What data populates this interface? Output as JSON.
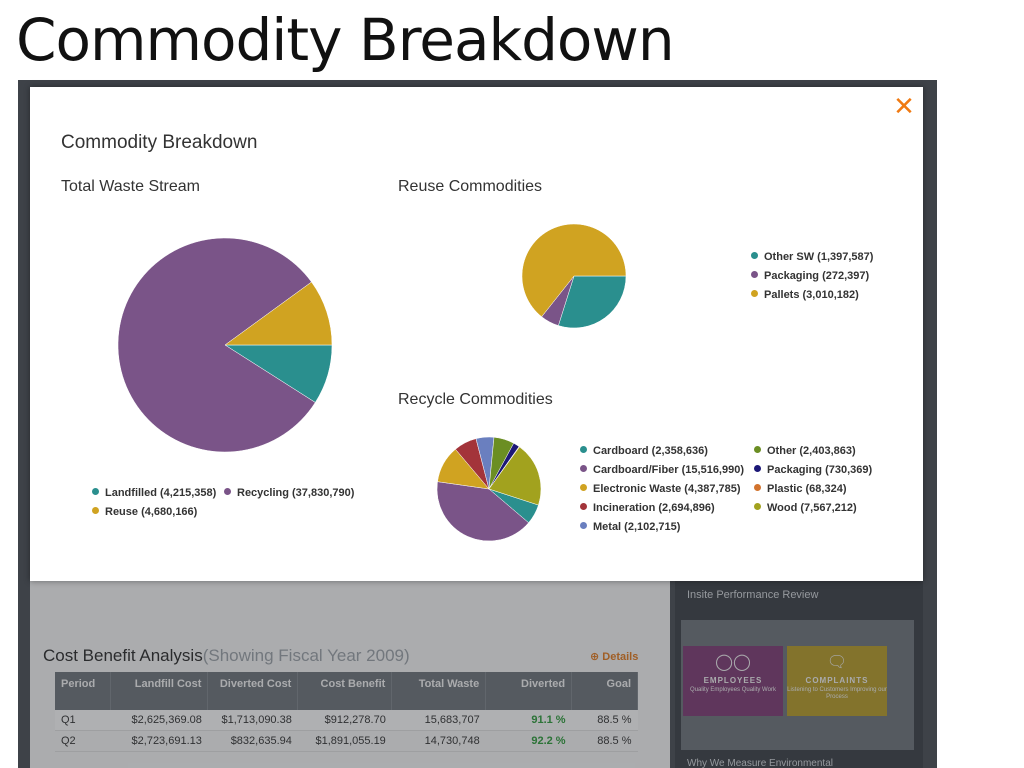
{
  "slide": {
    "title": "Commodity Breakdown"
  },
  "modal": {
    "title": "Commodity Breakdown",
    "close_icon": "close-x-icon",
    "close_glyph": "✕",
    "accent_color": "#f07a12"
  },
  "chart_data": [
    {
      "type": "pie",
      "title": "Total Waste Stream",
      "series": [
        {
          "name": "Landfilled",
          "value": 4215358,
          "label": "Landfilled (4,215,358)",
          "color": "#2a8f8e"
        },
        {
          "name": "Recycling",
          "value": 37830790,
          "label": "Recycling (37,830,790)",
          "color": "#7a5488"
        },
        {
          "name": "Reuse",
          "value": 4680166,
          "label": "Reuse (4,680,166)",
          "color": "#d0a321"
        }
      ],
      "legend": "bottom"
    },
    {
      "type": "pie",
      "title": "Reuse Commodities",
      "series": [
        {
          "name": "Other SW",
          "value": 1397587,
          "label": "Other SW (1,397,587)",
          "color": "#2a8f8e"
        },
        {
          "name": "Packaging",
          "value": 272397,
          "label": "Packaging (272,397)",
          "color": "#7a5488"
        },
        {
          "name": "Pallets",
          "value": 3010182,
          "label": "Pallets (3,010,182)",
          "color": "#d0a321"
        }
      ],
      "legend": "right"
    },
    {
      "type": "pie",
      "title": "Recycle Commodities",
      "series": [
        {
          "name": "Cardboard",
          "value": 2358636,
          "label": "Cardboard (2,358,636)",
          "color": "#2a8f8e"
        },
        {
          "name": "Cardboard/Fiber",
          "value": 15516990,
          "label": "Cardboard/Fiber (15,516,990)",
          "color": "#7a5488"
        },
        {
          "name": "Electronic Waste",
          "value": 4387785,
          "label": "Electronic Waste (4,387,785)",
          "color": "#d0a321"
        },
        {
          "name": "Incineration",
          "value": 2694896,
          "label": "Incineration (2,694,896)",
          "color": "#a3343a"
        },
        {
          "name": "Metal",
          "value": 2102715,
          "label": "Metal (2,102,715)",
          "color": "#6a7fbf"
        },
        {
          "name": "Other",
          "value": 2403863,
          "label": "Other (2,403,863)",
          "color": "#6b8e23"
        },
        {
          "name": "Packaging",
          "value": 730369,
          "label": "Packaging (730,369)",
          "color": "#1c1877"
        },
        {
          "name": "Plastic",
          "value": 68324,
          "label": "Plastic (68,324)",
          "color": "#d2732d"
        },
        {
          "name": "Wood",
          "value": 7567212,
          "label": "Wood (7,567,212)",
          "color": "#a2a21e"
        }
      ],
      "legend": "right"
    }
  ],
  "background": {
    "cost_title": "Cost Benefit Analysis",
    "cost_subtitle": "(Showing Fiscal Year 2009)",
    "details_label": "Details",
    "details_icon": "plus-circle-icon",
    "columns": [
      "Period",
      "Landfill Cost",
      "Diverted Cost",
      "Cost Benefit",
      "Total Waste",
      "Diverted",
      "Goal"
    ],
    "rows": [
      [
        "Q1",
        "$2,625,369.08",
        "$1,713,090.38",
        "$912,278.70",
        "15,683,707",
        "91.1 %",
        "88.5 %"
      ],
      [
        "Q2",
        "$2,723,691.13",
        "$832,635.94",
        "$1,891,055.19",
        "14,730,748",
        "92.2 %",
        "88.5 %"
      ]
    ],
    "perf_title": "Insite Performance Review",
    "tiles": [
      {
        "icon": "people-icon",
        "label": "EMPLOYEES",
        "sub": "Quality Employees Quality Work"
      },
      {
        "icon": "speech-bubble-icon",
        "label": "COMPLAINTS",
        "sub": "Listening to Customers Improving our Process"
      }
    ],
    "why_title": "Why We Measure Environmental"
  }
}
